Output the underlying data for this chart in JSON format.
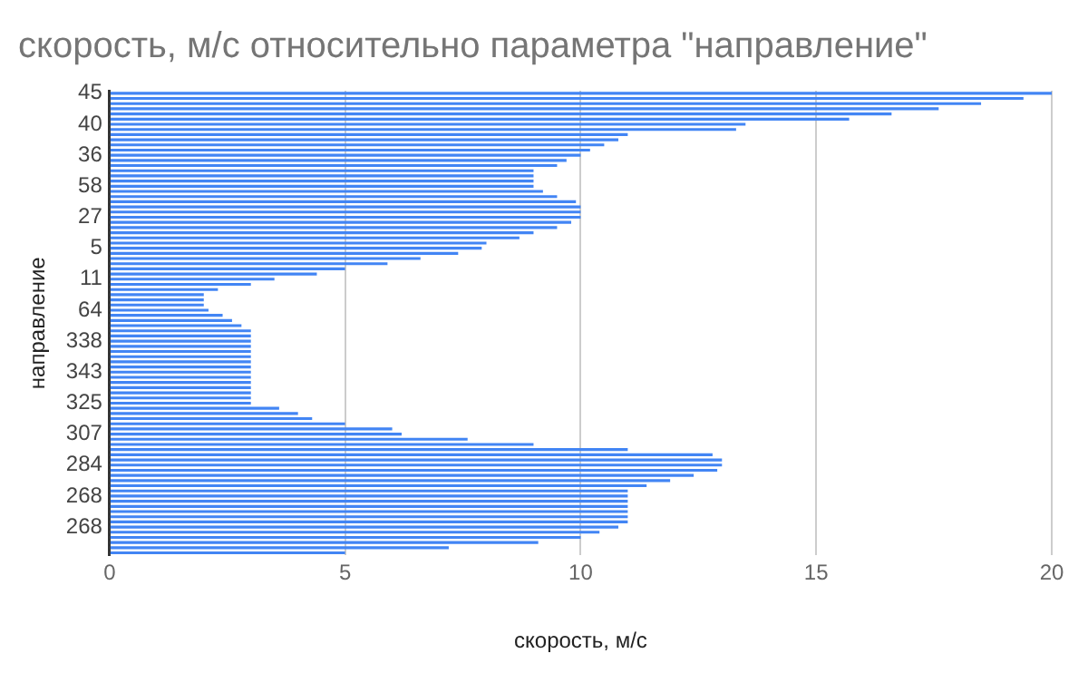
{
  "chart_data": {
    "type": "bar",
    "orientation": "horizontal",
    "title": "скорость, м/с относительно параметра \"направление\"",
    "xlabel": "скорость, м/с",
    "ylabel": "направление",
    "categories": [
      "45",
      null,
      null,
      null,
      null,
      null,
      "40",
      null,
      null,
      null,
      null,
      null,
      "36",
      null,
      null,
      null,
      null,
      null,
      "58",
      null,
      null,
      null,
      null,
      null,
      "27",
      null,
      null,
      null,
      null,
      null,
      "5",
      null,
      null,
      null,
      null,
      null,
      "11",
      null,
      null,
      null,
      null,
      null,
      "64",
      null,
      null,
      null,
      null,
      null,
      "338",
      null,
      null,
      null,
      null,
      null,
      "343",
      null,
      null,
      null,
      null,
      null,
      "325",
      null,
      null,
      null,
      null,
      null,
      "307",
      null,
      null,
      null,
      null,
      null,
      "284",
      null,
      null,
      null,
      null,
      null,
      "268",
      null,
      null,
      null,
      null,
      null,
      "268",
      null,
      null,
      null,
      null,
      null
    ],
    "values": [
      20,
      19.4,
      18.5,
      17.6,
      16.6,
      15.7,
      13.5,
      13.3,
      11,
      10.8,
      10.5,
      10.2,
      10,
      9.7,
      9.5,
      9,
      9,
      9,
      9,
      9.2,
      9.5,
      9.9,
      10,
      10,
      10,
      9.8,
      9.5,
      9,
      8.7,
      8,
      7.9,
      7.4,
      6.6,
      5.9,
      5,
      4.4,
      3.5,
      3,
      2.3,
      2,
      2,
      2,
      2.1,
      2.4,
      2.6,
      2.8,
      3,
      3,
      3,
      3,
      3,
      3,
      3,
      3,
      3,
      3,
      3,
      3,
      3,
      3,
      3,
      3.6,
      4,
      4.3,
      5,
      6,
      6.2,
      7.6,
      9,
      11,
      12.8,
      13,
      13,
      12.9,
      12.4,
      11.9,
      11.4,
      11,
      11,
      11,
      11,
      11,
      11,
      11,
      10.8,
      10.4,
      10,
      9.1,
      7.2,
      5
    ],
    "color": "#4285f4",
    "xlim": [
      0,
      20
    ],
    "xticks": [
      0,
      5,
      10,
      15,
      20
    ],
    "grid": "x"
  }
}
